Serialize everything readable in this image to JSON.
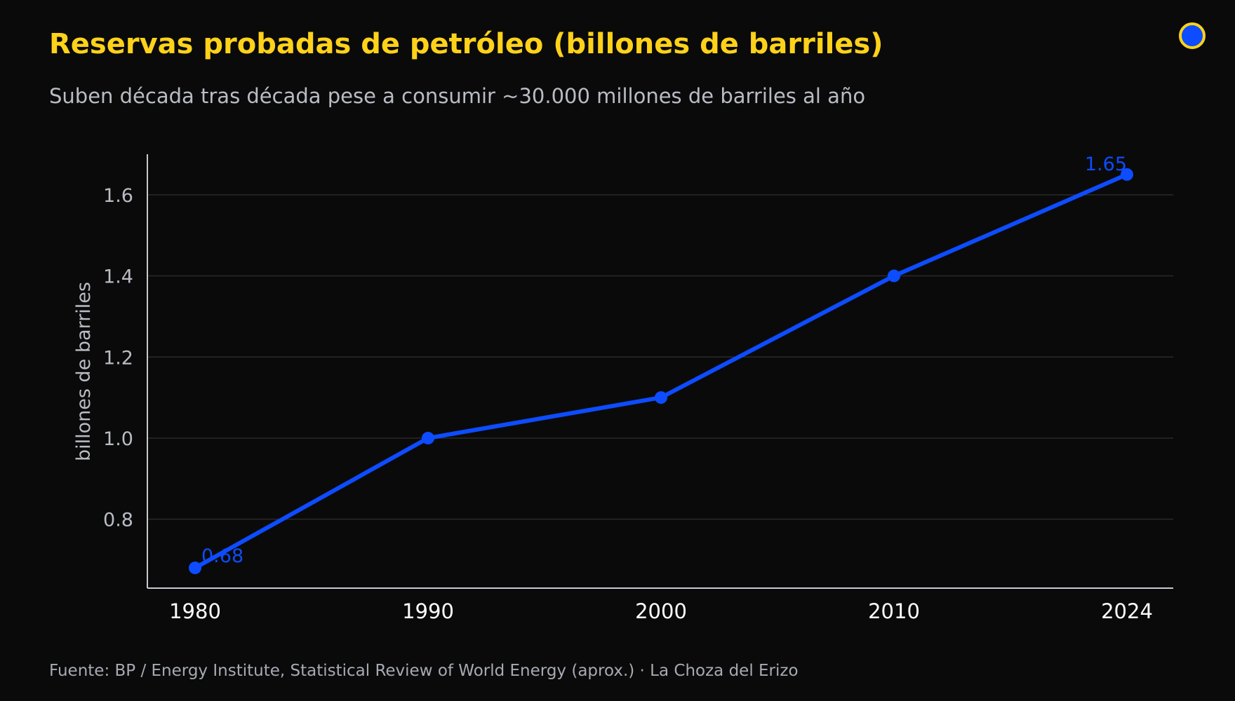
{
  "header": {
    "title": "Reservas probadas de petróleo (billones de barriles)",
    "subtitle": "Suben década tras década pese a consumir ~30.000 millones de barriles al año"
  },
  "footer": {
    "source": "Fuente: BP / Energy Institute, Statistical Review of World Energy (aprox.)  ·  La Choza del Erizo"
  },
  "colors": {
    "title": "#ffd21a",
    "series": "#0d4cff",
    "background": "#0a0a0a",
    "grid": "#2a2a2a",
    "axis": "#c8cad0"
  },
  "chart_data": {
    "type": "line",
    "categories": [
      "1980",
      "1990",
      "2000",
      "2010",
      "2024"
    ],
    "series": [
      {
        "values": [
          0.68,
          1.0,
          1.1,
          1.4,
          1.65
        ]
      }
    ],
    "data_labels": [
      {
        "index": 0,
        "text": "0.68"
      },
      {
        "index": 4,
        "text": "1.65"
      }
    ],
    "ylabel": "billones de barriles",
    "xlabel": "",
    "yticks": [
      "0.8",
      "1.0",
      "1.2",
      "1.4",
      "1.6"
    ],
    "ylim": [
      0.63,
      1.7
    ],
    "grid": true,
    "legend": "none"
  }
}
